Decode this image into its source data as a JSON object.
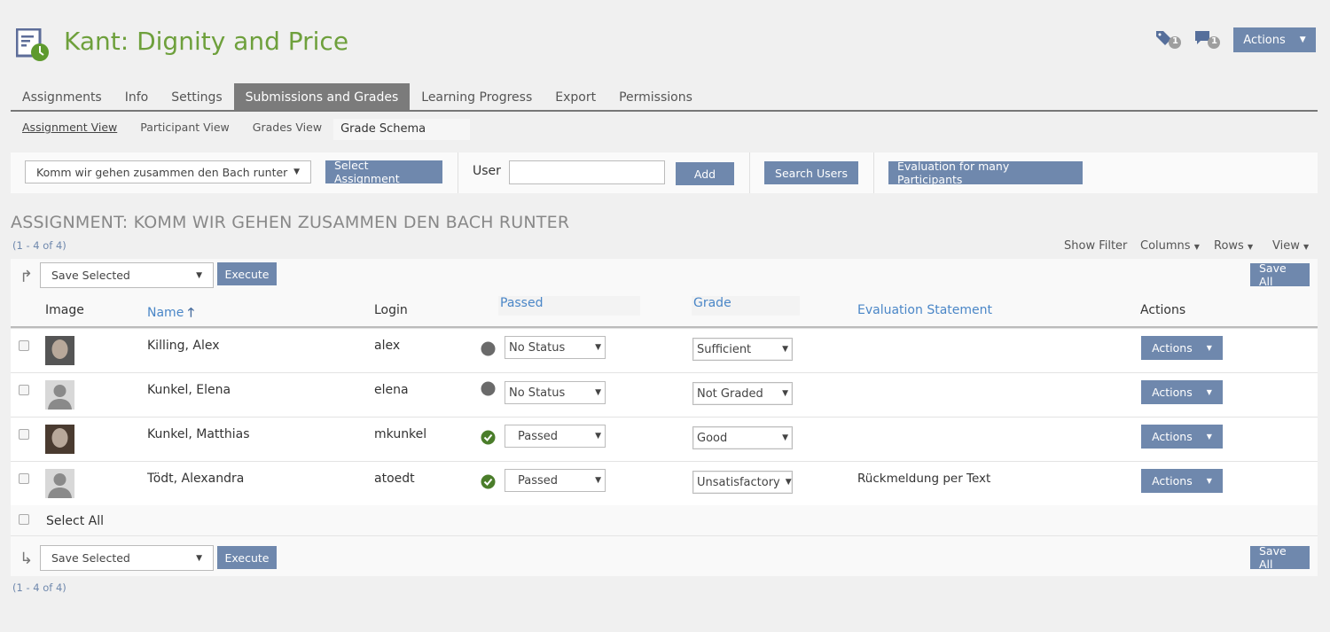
{
  "header": {
    "title": "Kant: Dignity and Price",
    "tags_count": "1",
    "comments_count": "1",
    "actions_label": "Actions"
  },
  "tabs": [
    "Assignments",
    "Info",
    "Settings",
    "Submissions and Grades",
    "Learning Progress",
    "Export",
    "Permissions"
  ],
  "active_tab": "Submissions and Grades",
  "subtabs": [
    "Assignment View",
    "Participant View",
    "Grades View",
    "Grade Schema"
  ],
  "toolbar": {
    "assignment_select": "Komm wir gehen zusammen den Bach runter",
    "select_assignment": "Select Assignment",
    "user_label": "User",
    "user_value": "",
    "add": "Add",
    "search_users": "Search Users",
    "evaluation_many": "Evaluation for many Participants"
  },
  "section": {
    "heading": "ASSIGNMENT: KOMM WIR GEHEN ZUSAMMEN DEN BACH RUNTER",
    "count": "(1 - 4 of 4)",
    "show_filter": "Show Filter",
    "columns": "Columns",
    "rows": "Rows",
    "view": "View"
  },
  "table": {
    "command_select": "Save Selected",
    "execute": "Execute",
    "save_all": "Save All",
    "columns": [
      "Image",
      "Name",
      "Login",
      "Passed",
      "Grade",
      "Evaluation Statement",
      "Actions"
    ],
    "rows": [
      {
        "name": "Killing, Alex",
        "login": "alex",
        "status": "none",
        "passed": "No Status",
        "grade": "Sufficient",
        "statement": "",
        "actions": "Actions"
      },
      {
        "name": "Kunkel, Elena",
        "login": "elena",
        "status": "none",
        "passed": "No Status",
        "grade": "Not Graded",
        "statement": "",
        "actions": "Actions"
      },
      {
        "name": "Kunkel, Matthias",
        "login": "mkunkel",
        "status": "passed",
        "passed": "Passed",
        "grade": "Good",
        "statement": "",
        "actions": "Actions"
      },
      {
        "name": "Tödt, Alexandra",
        "login": "atoedt",
        "status": "passed",
        "passed": "Passed",
        "grade": "Unsatisfactory",
        "statement": "Rückmeldung per Text",
        "actions": "Actions"
      }
    ],
    "select_all": "Select All"
  },
  "colors": {
    "accent": "#6f88ad",
    "title": "#6ea03c",
    "passed": "#4a7d2a"
  }
}
